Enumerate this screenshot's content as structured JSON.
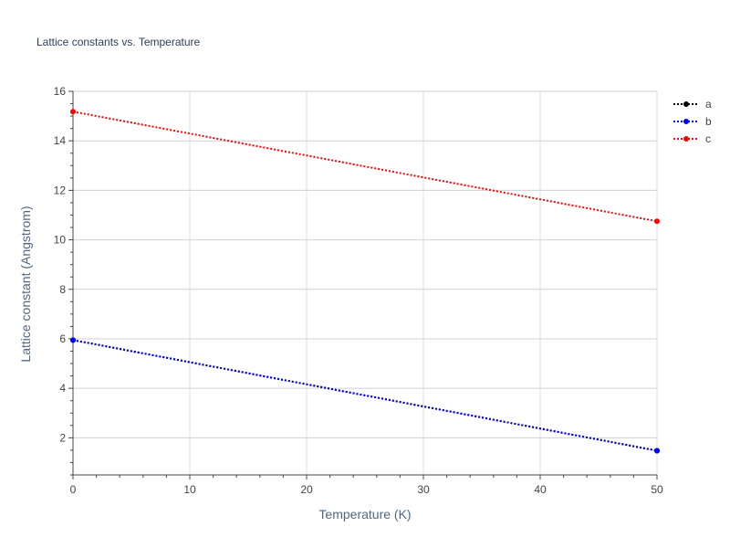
{
  "chart_data": {
    "type": "line",
    "title": "Lattice constants vs. Temperature",
    "xlabel": "Temperature (K)",
    "ylabel": "Lattice constant (Angstrom)",
    "xlim": [
      0,
      50
    ],
    "ylim": [
      0.5,
      16
    ],
    "x_ticks": [
      0,
      10,
      20,
      30,
      40,
      50
    ],
    "y_ticks": [
      2,
      4,
      6,
      8,
      10,
      12,
      14,
      16
    ],
    "grid": true,
    "legend": "top-right",
    "line_style": "dotted",
    "series": [
      {
        "name": "a",
        "color": "#000000",
        "x": [
          0,
          50
        ],
        "values": [
          5.95,
          1.48
        ]
      },
      {
        "name": "b",
        "color": "#0000ff",
        "x": [
          0,
          50
        ],
        "values": [
          5.95,
          1.48
        ]
      },
      {
        "name": "c",
        "color": "#ff0000",
        "x": [
          0,
          50
        ],
        "values": [
          15.18,
          10.75
        ]
      }
    ]
  }
}
